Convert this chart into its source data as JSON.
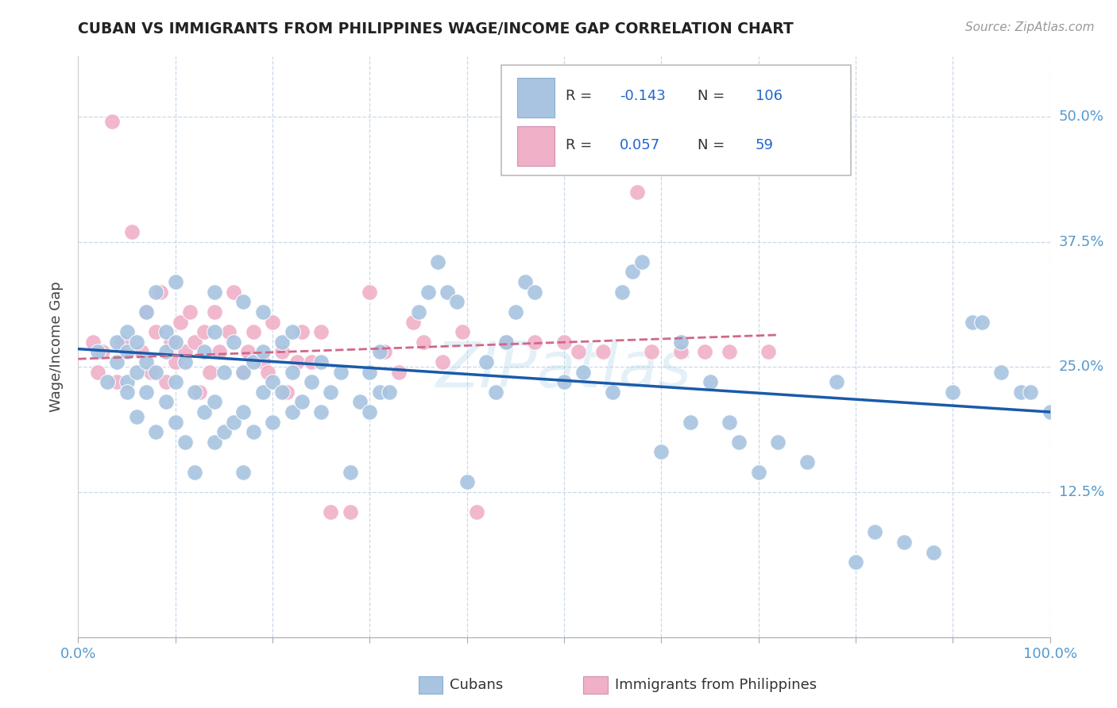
{
  "title": "CUBAN VS IMMIGRANTS FROM PHILIPPINES WAGE/INCOME GAP CORRELATION CHART",
  "source": "Source: ZipAtlas.com",
  "ylabel": "Wage/Income Gap",
  "xlim": [
    0,
    1.0
  ],
  "ylim": [
    -0.02,
    0.56
  ],
  "blue_color": "#a8c4e0",
  "pink_color": "#f0b0c8",
  "blue_line_color": "#1a5aaa",
  "pink_line_color": "#d06888",
  "legend_labels": [
    "Cubans",
    "Immigrants from Philippines"
  ],
  "cubans_R": "-0.143",
  "cubans_N": "106",
  "philippines_R": "0.057",
  "philippines_N": "59",
  "watermark": "ZIPatlas",
  "blue_trend_x": [
    0.0,
    1.0
  ],
  "blue_trend_y": [
    0.268,
    0.205
  ],
  "pink_trend_x": [
    0.0,
    0.72
  ],
  "pink_trend_y": [
    0.258,
    0.282
  ],
  "cubans_scatter_x": [
    0.02,
    0.03,
    0.04,
    0.04,
    0.05,
    0.05,
    0.05,
    0.05,
    0.06,
    0.06,
    0.06,
    0.07,
    0.07,
    0.07,
    0.08,
    0.08,
    0.08,
    0.09,
    0.09,
    0.09,
    0.1,
    0.1,
    0.1,
    0.1,
    0.11,
    0.11,
    0.12,
    0.12,
    0.13,
    0.13,
    0.14,
    0.14,
    0.14,
    0.14,
    0.15,
    0.15,
    0.16,
    0.16,
    0.17,
    0.17,
    0.17,
    0.17,
    0.18,
    0.18,
    0.19,
    0.19,
    0.19,
    0.2,
    0.2,
    0.21,
    0.21,
    0.22,
    0.22,
    0.22,
    0.23,
    0.24,
    0.25,
    0.25,
    0.26,
    0.27,
    0.28,
    0.29,
    0.3,
    0.3,
    0.31,
    0.31,
    0.32,
    0.35,
    0.36,
    0.37,
    0.38,
    0.39,
    0.4,
    0.42,
    0.43,
    0.44,
    0.45,
    0.46,
    0.47,
    0.5,
    0.52,
    0.55,
    0.56,
    0.57,
    0.58,
    0.6,
    0.62,
    0.63,
    0.65,
    0.67,
    0.68,
    0.7,
    0.72,
    0.75,
    0.78,
    0.8,
    0.82,
    0.85,
    0.88,
    0.9,
    0.92,
    0.93,
    0.95,
    0.97,
    0.98,
    1.0
  ],
  "cubans_scatter_y": [
    0.265,
    0.235,
    0.255,
    0.275,
    0.235,
    0.265,
    0.285,
    0.225,
    0.2,
    0.245,
    0.275,
    0.225,
    0.255,
    0.305,
    0.185,
    0.245,
    0.325,
    0.215,
    0.265,
    0.285,
    0.195,
    0.235,
    0.275,
    0.335,
    0.175,
    0.255,
    0.145,
    0.225,
    0.205,
    0.265,
    0.175,
    0.215,
    0.285,
    0.325,
    0.185,
    0.245,
    0.195,
    0.275,
    0.145,
    0.205,
    0.245,
    0.315,
    0.185,
    0.255,
    0.225,
    0.265,
    0.305,
    0.195,
    0.235,
    0.225,
    0.275,
    0.205,
    0.245,
    0.285,
    0.215,
    0.235,
    0.205,
    0.255,
    0.225,
    0.245,
    0.145,
    0.215,
    0.205,
    0.245,
    0.225,
    0.265,
    0.225,
    0.305,
    0.325,
    0.355,
    0.325,
    0.315,
    0.135,
    0.255,
    0.225,
    0.275,
    0.305,
    0.335,
    0.325,
    0.235,
    0.245,
    0.225,
    0.325,
    0.345,
    0.355,
    0.165,
    0.275,
    0.195,
    0.235,
    0.195,
    0.175,
    0.145,
    0.175,
    0.155,
    0.235,
    0.055,
    0.085,
    0.075,
    0.065,
    0.225,
    0.295,
    0.295,
    0.245,
    0.225,
    0.225,
    0.205
  ],
  "philippines_scatter_x": [
    0.015,
    0.02,
    0.025,
    0.035,
    0.04,
    0.045,
    0.055,
    0.065,
    0.07,
    0.075,
    0.08,
    0.085,
    0.09,
    0.095,
    0.1,
    0.105,
    0.11,
    0.115,
    0.12,
    0.125,
    0.13,
    0.135,
    0.14,
    0.145,
    0.155,
    0.16,
    0.17,
    0.175,
    0.18,
    0.19,
    0.195,
    0.2,
    0.21,
    0.215,
    0.225,
    0.23,
    0.24,
    0.25,
    0.26,
    0.28,
    0.3,
    0.315,
    0.33,
    0.345,
    0.355,
    0.375,
    0.395,
    0.41,
    0.44,
    0.47,
    0.5,
    0.515,
    0.54,
    0.575,
    0.59,
    0.62,
    0.645,
    0.67,
    0.71
  ],
  "philippines_scatter_y": [
    0.275,
    0.245,
    0.265,
    0.495,
    0.235,
    0.275,
    0.385,
    0.265,
    0.305,
    0.245,
    0.285,
    0.325,
    0.235,
    0.275,
    0.255,
    0.295,
    0.265,
    0.305,
    0.275,
    0.225,
    0.285,
    0.245,
    0.305,
    0.265,
    0.285,
    0.325,
    0.245,
    0.265,
    0.285,
    0.255,
    0.245,
    0.295,
    0.265,
    0.225,
    0.255,
    0.285,
    0.255,
    0.285,
    0.105,
    0.105,
    0.325,
    0.265,
    0.245,
    0.295,
    0.275,
    0.255,
    0.285,
    0.105,
    0.275,
    0.275,
    0.275,
    0.265,
    0.265,
    0.425,
    0.265,
    0.265,
    0.265,
    0.265,
    0.265
  ]
}
